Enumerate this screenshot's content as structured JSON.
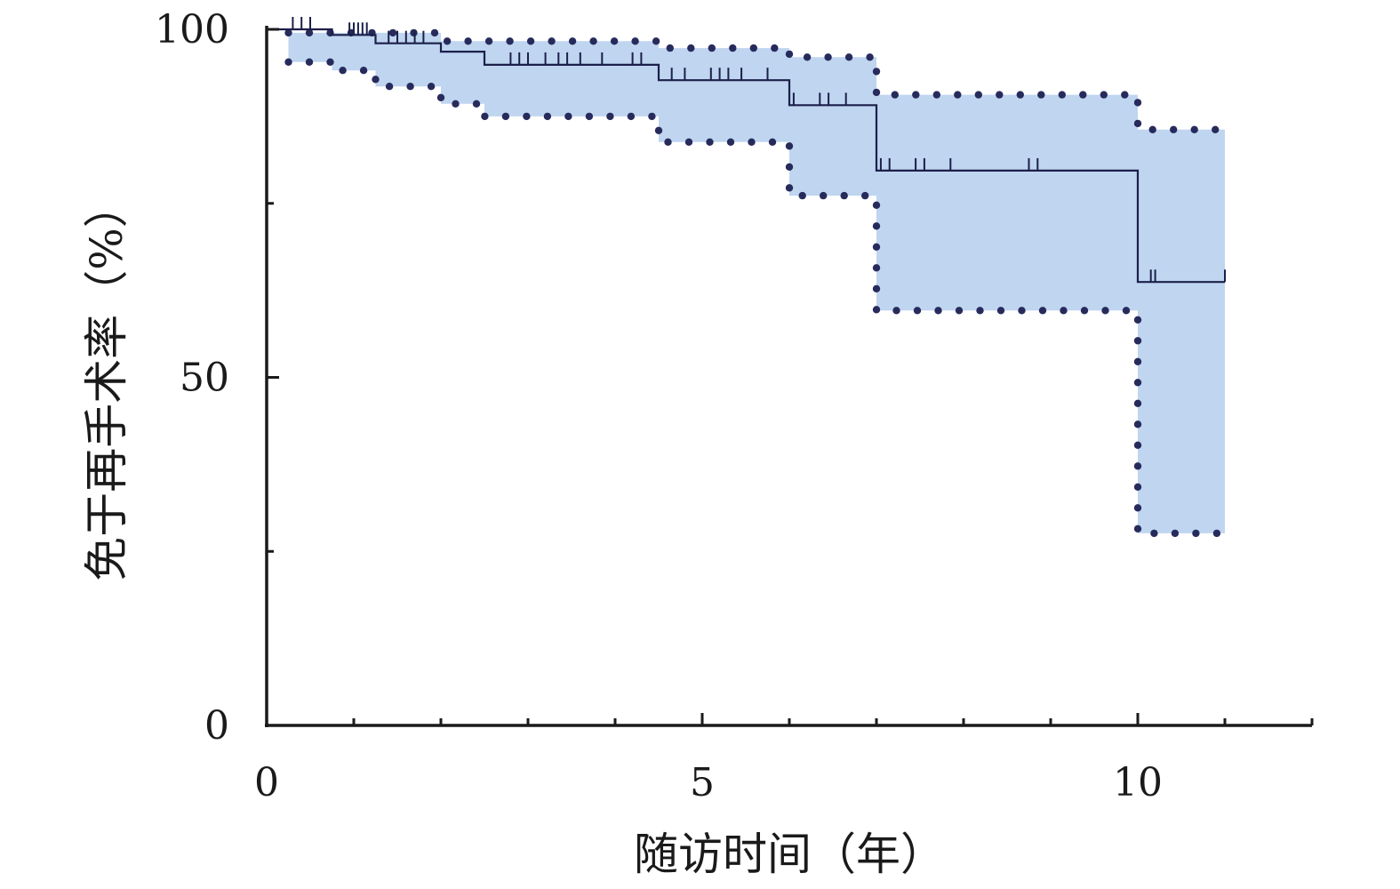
{
  "chart_data": {
    "type": "line",
    "subtype": "kaplan-meier survival curve with 95% confidence band",
    "title": "",
    "xlabel": "随访时间（年）",
    "ylabel": "免于再手术率（%）",
    "xlim": [
      0,
      12
    ],
    "ylim": [
      0,
      100
    ],
    "x_ticks": [
      0,
      5,
      10
    ],
    "x_minor_ticks": [
      1,
      2,
      3,
      4,
      6,
      7,
      8,
      9,
      11,
      12
    ],
    "y_ticks": [
      0,
      50,
      100
    ],
    "y_minor_ticks": [
      25,
      75
    ],
    "grid": false,
    "legend": "none",
    "colors": {
      "survival_line": "#1c1f4a",
      "ci_fill": "#bfd5f0",
      "ci_dots": "#272b5c",
      "axis": "#1a1a1a"
    },
    "series": [
      {
        "role": "survival",
        "step": true,
        "x": [
          0,
          0.2,
          0.75,
          1.25,
          2.0,
          2.5,
          4.5,
          6.0,
          7.0,
          10.0,
          11.0
        ],
        "y": [
          100,
          100,
          99.2,
          98.0,
          96.8,
          94.9,
          92.7,
          89.1,
          79.7,
          63.7,
          63.7
        ]
      },
      {
        "role": "ci_upper",
        "step": true,
        "x": [
          0.25,
          2.0,
          4.5,
          6.0,
          7.0,
          10.0,
          11.0
        ],
        "y": [
          99.5,
          98.3,
          97.3,
          96.0,
          90.6,
          85.6,
          85.6
        ]
      },
      {
        "role": "ci_lower",
        "step": true,
        "x": [
          0.25,
          0.75,
          1.25,
          2.0,
          2.5,
          4.5,
          6.0,
          7.0,
          10.0,
          11.0
        ],
        "y": [
          95.3,
          94.1,
          91.8,
          89.3,
          87.5,
          83.8,
          76.1,
          59.6,
          27.6,
          27.6
        ]
      }
    ],
    "censored_marks": [
      {
        "x": 0.3,
        "y": 100
      },
      {
        "x": 0.4,
        "y": 100
      },
      {
        "x": 0.5,
        "y": 100
      },
      {
        "x": 0.95,
        "y": 99.2
      },
      {
        "x": 1.0,
        "y": 99.2
      },
      {
        "x": 1.05,
        "y": 99.2
      },
      {
        "x": 1.1,
        "y": 99.2
      },
      {
        "x": 1.15,
        "y": 99.2
      },
      {
        "x": 1.4,
        "y": 98.0
      },
      {
        "x": 1.5,
        "y": 98.0
      },
      {
        "x": 1.6,
        "y": 98.0
      },
      {
        "x": 1.7,
        "y": 98.0
      },
      {
        "x": 1.8,
        "y": 98.0
      },
      {
        "x": 2.8,
        "y": 94.9
      },
      {
        "x": 2.9,
        "y": 94.9
      },
      {
        "x": 3.0,
        "y": 94.9
      },
      {
        "x": 3.2,
        "y": 94.9
      },
      {
        "x": 3.35,
        "y": 94.9
      },
      {
        "x": 3.45,
        "y": 94.9
      },
      {
        "x": 3.6,
        "y": 94.9
      },
      {
        "x": 3.85,
        "y": 94.9
      },
      {
        "x": 4.2,
        "y": 94.9
      },
      {
        "x": 4.3,
        "y": 94.9
      },
      {
        "x": 4.65,
        "y": 92.7
      },
      {
        "x": 4.8,
        "y": 92.7
      },
      {
        "x": 5.1,
        "y": 92.7
      },
      {
        "x": 5.2,
        "y": 92.7
      },
      {
        "x": 5.3,
        "y": 92.7
      },
      {
        "x": 5.45,
        "y": 92.7
      },
      {
        "x": 5.75,
        "y": 92.7
      },
      {
        "x": 6.05,
        "y": 89.1
      },
      {
        "x": 6.35,
        "y": 89.1
      },
      {
        "x": 6.45,
        "y": 89.1
      },
      {
        "x": 6.65,
        "y": 89.1
      },
      {
        "x": 7.05,
        "y": 79.7
      },
      {
        "x": 7.15,
        "y": 79.7
      },
      {
        "x": 7.45,
        "y": 79.7
      },
      {
        "x": 7.55,
        "y": 79.7
      },
      {
        "x": 7.85,
        "y": 79.7
      },
      {
        "x": 8.75,
        "y": 79.7
      },
      {
        "x": 8.85,
        "y": 79.7
      },
      {
        "x": 10.15,
        "y": 63.7
      },
      {
        "x": 10.2,
        "y": 63.7
      },
      {
        "x": 11.0,
        "y": 63.7
      }
    ]
  }
}
